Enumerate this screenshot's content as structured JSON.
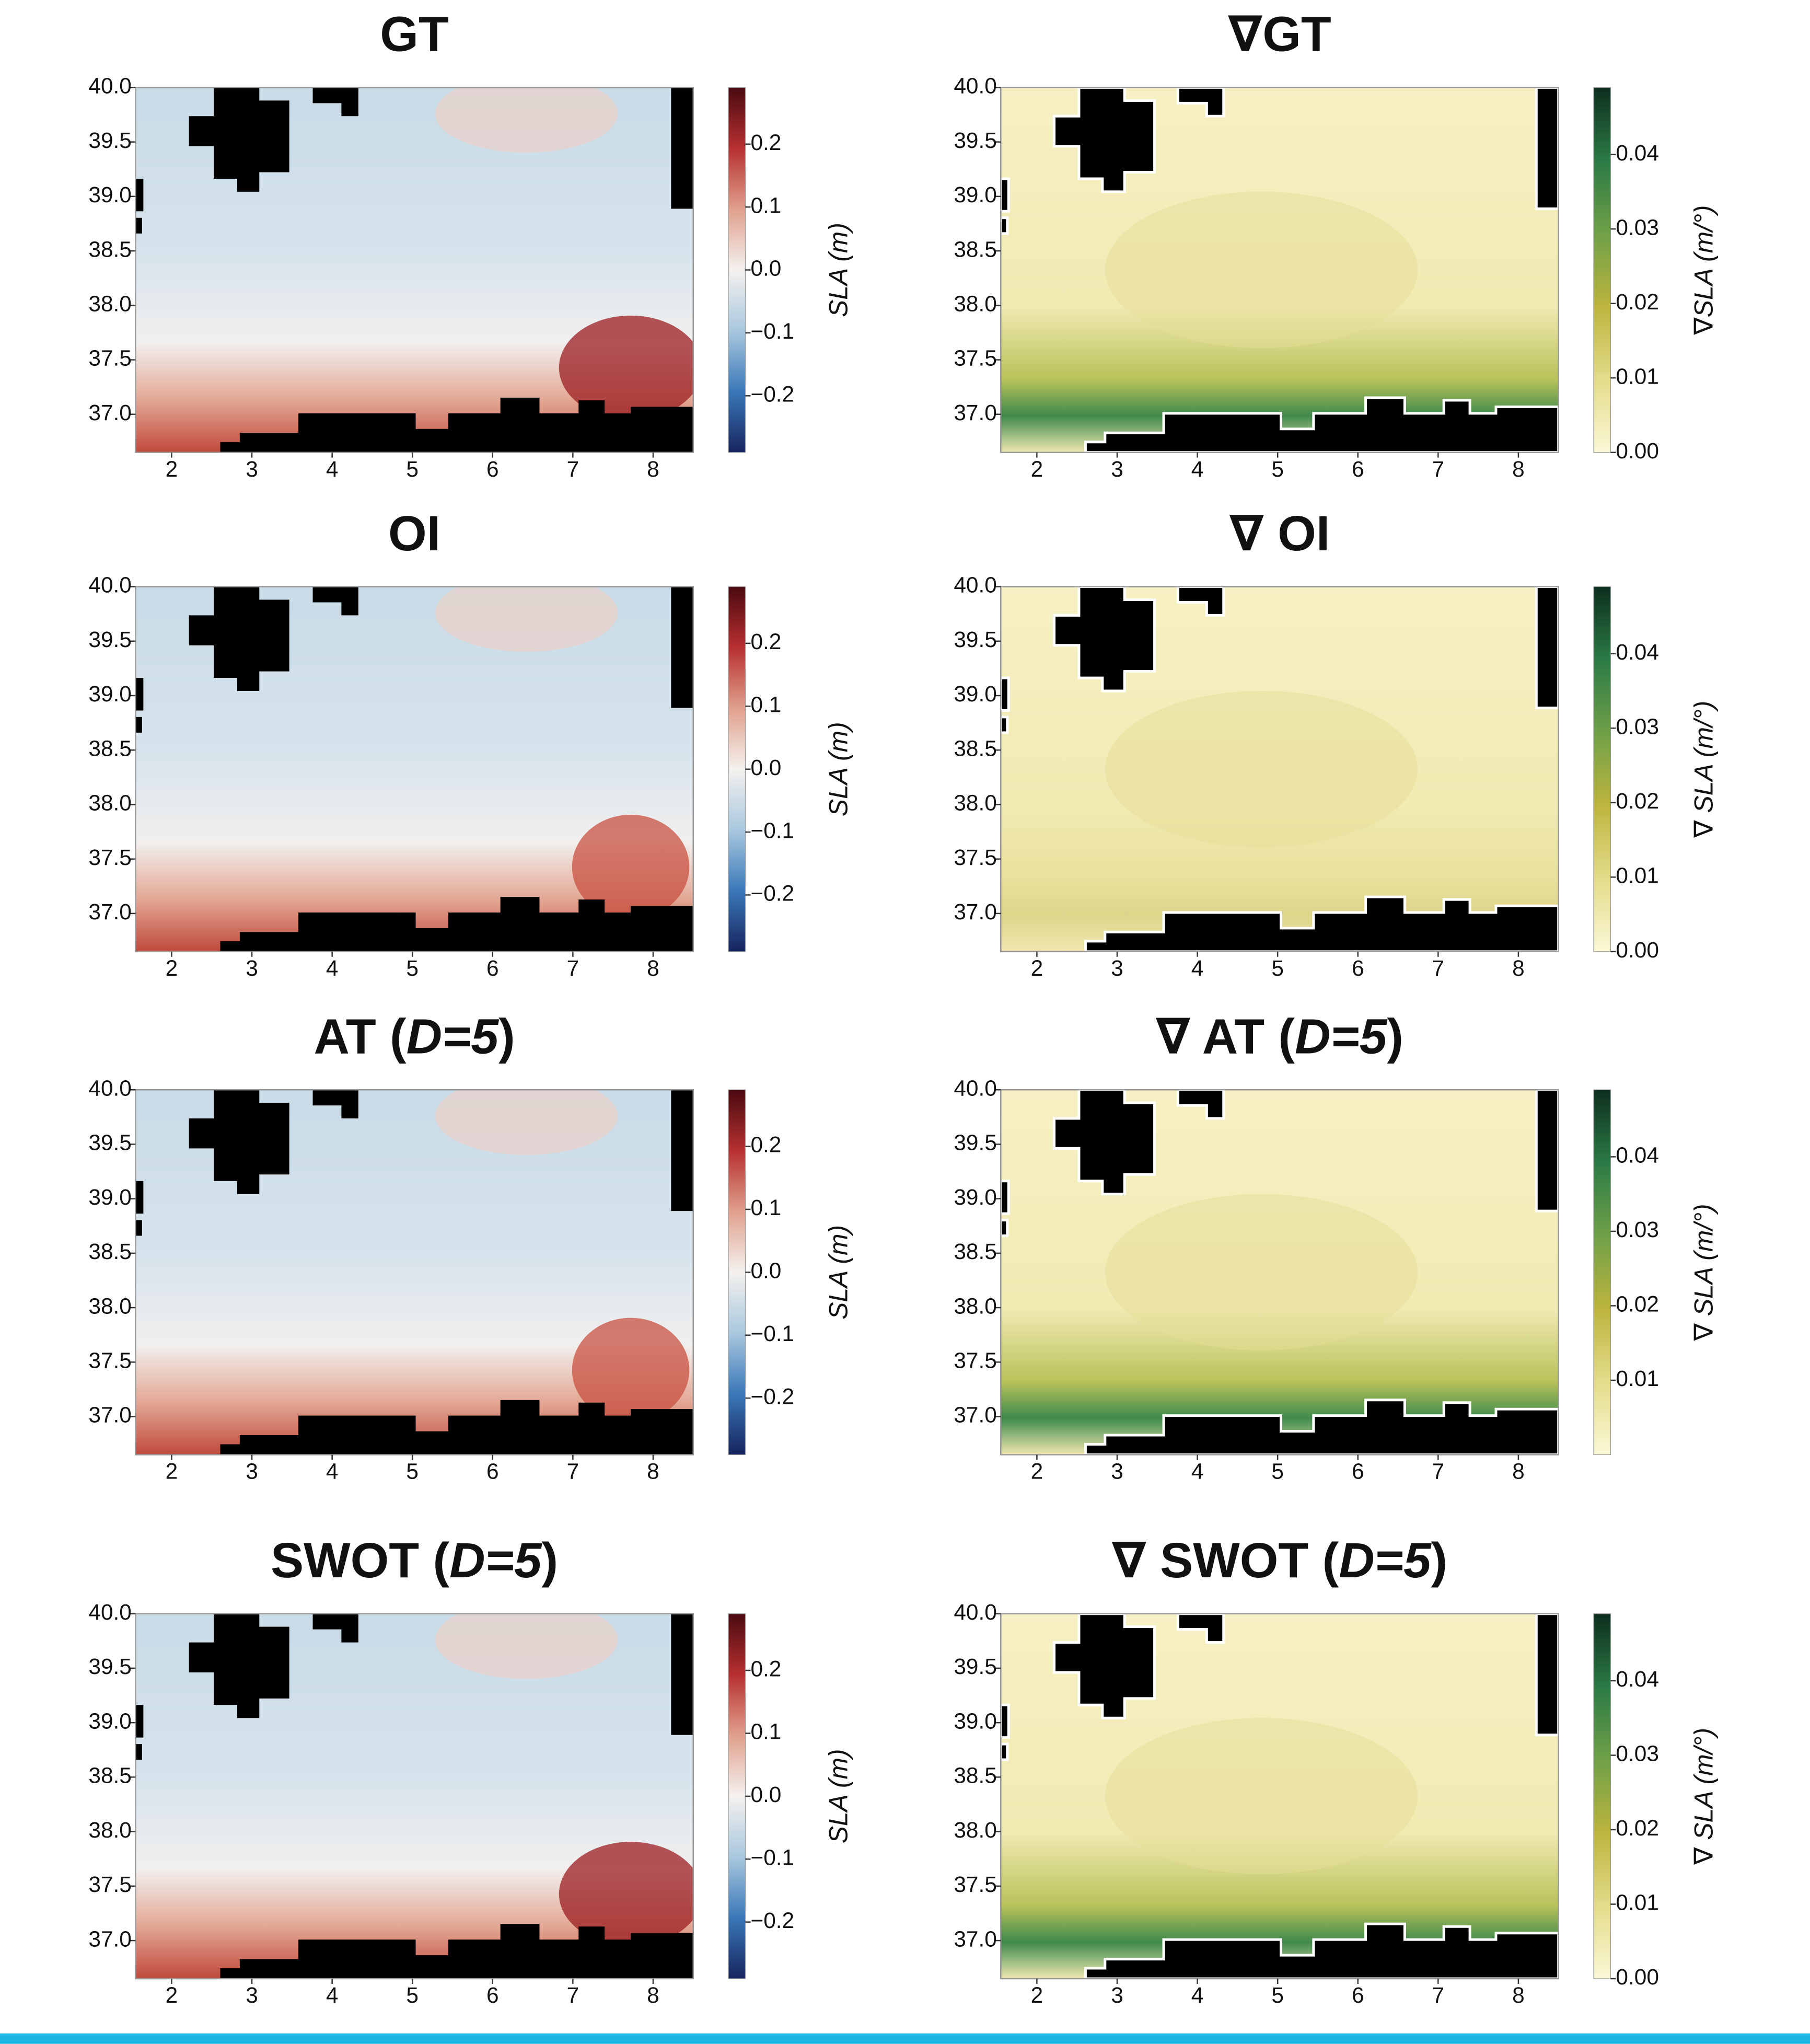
{
  "chart_data": [
    {
      "type": "heatmap",
      "title": "GT",
      "xlim": [
        1.55,
        8.5
      ],
      "xticks": [
        2,
        3,
        4,
        5,
        6,
        7,
        8
      ],
      "ylim": [
        36.65,
        40.0
      ],
      "yticks": [
        {
          "value": 37,
          "label": "37.0"
        },
        37.5,
        {
          "value": 38,
          "label": "38.0"
        },
        38.5,
        {
          "value": 39,
          "label": "39.0"
        },
        39.5,
        {
          "value": 40,
          "label": "40.0"
        }
      ],
      "colorbar": {
        "label": "SLA (m)",
        "lim": [
          -0.29,
          0.29
        ],
        "ticks": [
          {
            "value": -0.2,
            "label": "−0.2"
          },
          {
            "value": -0.1,
            "label": "−0.1"
          },
          {
            "value": 0,
            "label": "0.0"
          },
          0.1,
          0.2
        ],
        "colors": [
          "#16245e",
          "#3a78b8",
          "#a9c8de",
          "#f4f1ee",
          "#e0a08c",
          "#b73030",
          "#4a0a10"
        ]
      }
    },
    {
      "type": "heatmap",
      "title": "∇GT",
      "xlim": [
        1.55,
        8.5
      ],
      "xticks": [
        2,
        3,
        4,
        5,
        6,
        7,
        8
      ],
      "ylim": [
        36.65,
        40.0
      ],
      "yticks": [
        {
          "value": 37,
          "label": "37.0"
        },
        37.5,
        {
          "value": 38,
          "label": "38.0"
        },
        38.5,
        {
          "value": 39,
          "label": "39.0"
        },
        39.5,
        {
          "value": 40,
          "label": "40.0"
        }
      ],
      "colorbar": {
        "label": "∇SLA (m/°)",
        "lim": [
          0,
          0.049
        ],
        "ticks": [
          {
            "value": 0,
            "label": "0.00"
          },
          0.01,
          0.02,
          0.03,
          0.04
        ],
        "colors": [
          "#fbf8d6",
          "#e3dc8a",
          "#bdb53e",
          "#6fa048",
          "#2b7a45",
          "#0d2e1e"
        ]
      }
    },
    {
      "type": "heatmap",
      "title": "OI",
      "xlim": [
        1.55,
        8.5
      ],
      "xticks": [
        2,
        3,
        4,
        5,
        6,
        7,
        8
      ],
      "ylim": [
        36.65,
        40.0
      ],
      "yticks": [
        {
          "value": 37,
          "label": "37.0"
        },
        37.5,
        {
          "value": 38,
          "label": "38.0"
        },
        38.5,
        {
          "value": 39,
          "label": "39.0"
        },
        39.5,
        {
          "value": 40,
          "label": "40.0"
        }
      ],
      "colorbar": {
        "label": "SLA (m)",
        "lim": [
          -0.29,
          0.29
        ],
        "ticks": [
          {
            "value": -0.2,
            "label": "−0.2"
          },
          {
            "value": -0.1,
            "label": "−0.1"
          },
          {
            "value": 0,
            "label": "0.0"
          },
          0.1,
          0.2
        ],
        "colors": [
          "#16245e",
          "#3a78b8",
          "#a9c8de",
          "#f4f1ee",
          "#e0a08c",
          "#b73030",
          "#4a0a10"
        ]
      }
    },
    {
      "type": "heatmap",
      "title": "∇ OI",
      "xlim": [
        1.55,
        8.5
      ],
      "xticks": [
        2,
        3,
        4,
        5,
        6,
        7,
        8
      ],
      "ylim": [
        36.65,
        40.0
      ],
      "yticks": [
        {
          "value": 37,
          "label": "37.0"
        },
        37.5,
        {
          "value": 38,
          "label": "38.0"
        },
        38.5,
        {
          "value": 39,
          "label": "39.0"
        },
        39.5,
        {
          "value": 40,
          "label": "40.0"
        }
      ],
      "colorbar": {
        "label": "∇ SLA (m/°)",
        "lim": [
          0,
          0.049
        ],
        "ticks": [
          {
            "value": 0,
            "label": "0.00"
          },
          0.01,
          0.02,
          0.03,
          0.04
        ],
        "colors": [
          "#fbf8d6",
          "#e3dc8a",
          "#bdb53e",
          "#6fa048",
          "#2b7a45",
          "#0d2e1e"
        ]
      }
    },
    {
      "type": "heatmap",
      "title": "AT (D=5)",
      "xlim": [
        1.55,
        8.5
      ],
      "xticks": [
        2,
        3,
        4,
        5,
        6,
        7,
        8
      ],
      "ylim": [
        36.65,
        40.0
      ],
      "yticks": [
        {
          "value": 37,
          "label": "37.0"
        },
        37.5,
        {
          "value": 38,
          "label": "38.0"
        },
        38.5,
        {
          "value": 39,
          "label": "39.0"
        },
        39.5,
        {
          "value": 40,
          "label": "40.0"
        }
      ],
      "colorbar": {
        "label": "SLA (m)",
        "lim": [
          -0.29,
          0.29
        ],
        "ticks": [
          {
            "value": -0.2,
            "label": "−0.2"
          },
          {
            "value": -0.1,
            "label": "−0.1"
          },
          {
            "value": 0,
            "label": "0.0"
          },
          0.1,
          0.2
        ],
        "colors": [
          "#16245e",
          "#3a78b8",
          "#a9c8de",
          "#f4f1ee",
          "#e0a08c",
          "#b73030",
          "#4a0a10"
        ]
      }
    },
    {
      "type": "heatmap",
      "title": "∇ AT (D=5)",
      "xlim": [
        1.55,
        8.5
      ],
      "xticks": [
        2,
        3,
        4,
        5,
        6,
        7,
        8
      ],
      "ylim": [
        36.65,
        40.0
      ],
      "yticks": [
        {
          "value": 37,
          "label": "37.0"
        },
        37.5,
        {
          "value": 38,
          "label": "38.0"
        },
        38.5,
        {
          "value": 39,
          "label": "39.0"
        },
        39.5,
        {
          "value": 40,
          "label": "40.0"
        }
      ],
      "colorbar": {
        "label": "∇ SLA (m/°)",
        "lim": [
          0,
          0.049
        ],
        "ticks": [
          0.01,
          0.02,
          0.03,
          0.04
        ],
        "colors": [
          "#fbf8d6",
          "#e3dc8a",
          "#bdb53e",
          "#6fa048",
          "#2b7a45",
          "#0d2e1e"
        ]
      }
    },
    {
      "type": "heatmap",
      "title": "SWOT (D=5)",
      "xlim": [
        1.55,
        8.5
      ],
      "xticks": [
        2,
        3,
        4,
        5,
        6,
        7,
        8
      ],
      "ylim": [
        36.65,
        40.0
      ],
      "yticks": [
        {
          "value": 37,
          "label": "37.0"
        },
        37.5,
        {
          "value": 38,
          "label": "38.0"
        },
        38.5,
        {
          "value": 39,
          "label": "39.0"
        },
        39.5,
        {
          "value": 40,
          "label": "40.0"
        }
      ],
      "colorbar": {
        "label": "SLA (m)",
        "lim": [
          -0.29,
          0.29
        ],
        "ticks": [
          {
            "value": -0.2,
            "label": "−0.2"
          },
          {
            "value": -0.1,
            "label": "−0.1"
          },
          {
            "value": 0,
            "label": "0.0"
          },
          0.1,
          0.2
        ],
        "colors": [
          "#16245e",
          "#3a78b8",
          "#a9c8de",
          "#f4f1ee",
          "#e0a08c",
          "#b73030",
          "#4a0a10"
        ]
      }
    },
    {
      "type": "heatmap",
      "title": "∇ SWOT (D=5)",
      "xlim": [
        1.55,
        8.5
      ],
      "xticks": [
        2,
        3,
        4,
        5,
        6,
        7,
        8
      ],
      "ylim": [
        36.65,
        40.0
      ],
      "yticks": [
        {
          "value": 37,
          "label": "37.0"
        },
        37.5,
        {
          "value": 38,
          "label": "38.0"
        },
        38.5,
        {
          "value": 39,
          "label": "39.0"
        },
        39.5,
        {
          "value": 40,
          "label": "40.0"
        }
      ],
      "colorbar": {
        "label": "∇ SLA (m/°)",
        "lim": [
          0,
          0.049
        ],
        "ticks": [
          {
            "value": 0,
            "label": "0.00"
          },
          0.01,
          0.02,
          0.03,
          0.04
        ],
        "colors": [
          "#fbf8d6",
          "#e3dc8a",
          "#bdb53e",
          "#6fa048",
          "#2b7a45",
          "#0d2e1e"
        ]
      }
    }
  ]
}
